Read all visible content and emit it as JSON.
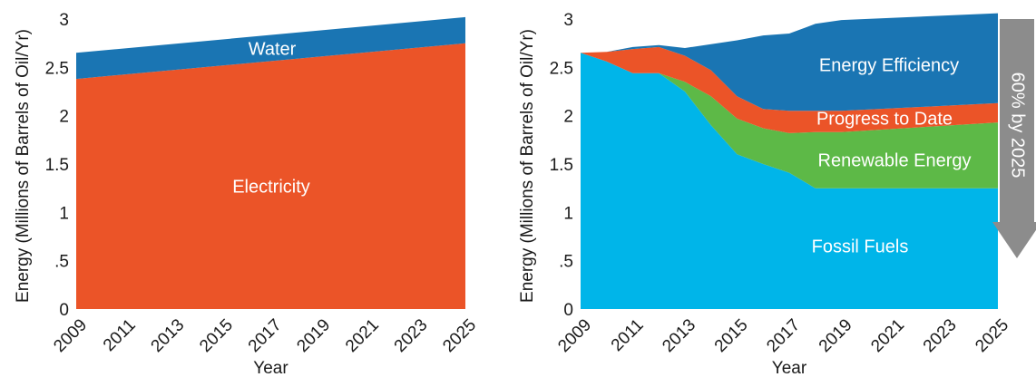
{
  "chart_data": [
    {
      "type": "area",
      "stacked": true,
      "title": "",
      "xlabel": "Year",
      "ylabel": "Energy (Millions of Barrels of Oil/Yr)",
      "xlim": [
        2009,
        2025
      ],
      "ylim": [
        0,
        3
      ],
      "x_ticks": [
        "2009",
        "2011",
        "2013",
        "2015",
        "2017",
        "2019",
        "2021",
        "2023",
        "2025"
      ],
      "y_ticks": [
        "0",
        ".5",
        "1",
        "1.5",
        "2",
        "2.5",
        "3"
      ],
      "grid": false,
      "x": [
        2009,
        2025
      ],
      "series": [
        {
          "name": "Electricity",
          "values": [
            2.38,
            2.75
          ],
          "color": "#EB5428"
        },
        {
          "name": "Water",
          "values": [
            0.27,
            0.27
          ],
          "color": "#1A75B3"
        }
      ]
    },
    {
      "type": "area",
      "stacked": true,
      "title": "",
      "xlabel": "Year",
      "ylabel": "Energy (Millions of Barrels of Oil/Yr)",
      "xlim": [
        2009,
        2025
      ],
      "ylim": [
        0,
        3
      ],
      "x_ticks": [
        "2009",
        "2011",
        "2013",
        "2015",
        "2017",
        "2019",
        "2021",
        "2023",
        "2025"
      ],
      "y_ticks": [
        "0",
        ".5",
        "1",
        "1.5",
        "2",
        "2.5",
        "3"
      ],
      "grid": false,
      "x": [
        2009,
        2010,
        2011,
        2012,
        2013,
        2014,
        2015,
        2016,
        2017,
        2018,
        2019,
        2025
      ],
      "series": [
        {
          "name": "Fossil Fuels",
          "values": [
            2.65,
            2.56,
            2.44,
            2.44,
            2.25,
            1.9,
            1.6,
            1.5,
            1.41,
            1.25,
            1.25,
            1.25
          ],
          "color": "#00B5E9"
        },
        {
          "name": "Renewable Energy",
          "values": [
            0,
            0,
            0,
            0,
            0.1,
            0.3,
            0.37,
            0.37,
            0.41,
            0.58,
            0.58,
            0.68
          ],
          "color": "#5DB947"
        },
        {
          "name": "Progress to Date",
          "values": [
            0,
            0.1,
            0.25,
            0.27,
            0.27,
            0.27,
            0.23,
            0.2,
            0.23,
            0.22,
            0.22,
            0.2
          ],
          "color": "#EB5428"
        },
        {
          "name": "Energy Efficiency",
          "values": [
            0,
            0,
            0.02,
            0.02,
            0.08,
            0.27,
            0.58,
            0.76,
            0.8,
            0.9,
            0.94,
            0.93
          ],
          "color": "#1A75B3"
        }
      ],
      "annotation": {
        "text": "60% by 2025",
        "color": "#8C8C8C"
      }
    }
  ]
}
